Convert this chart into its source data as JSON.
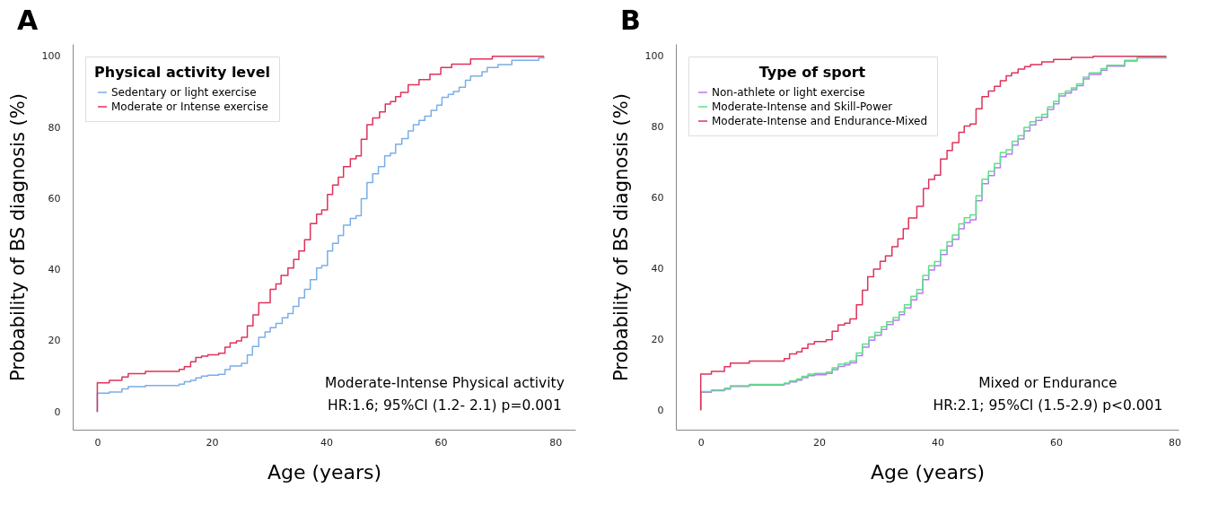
{
  "chart_data": [
    {
      "type": "step",
      "title": "A",
      "xlabel": "Age (years)",
      "ylabel": "Probability of BS diagnosis (%)",
      "legend_title": "Physical activity level",
      "legend": "top left",
      "grid": false,
      "xlim": [
        -4.3,
        83.5
      ],
      "ylim": [
        -5,
        103.5
      ],
      "xticks": [
        0,
        20,
        40,
        60,
        80
      ],
      "yticks": [
        0,
        20,
        40,
        60,
        80,
        100
      ],
      "annotations": [
        "Moderate-Intense Physical activity",
        "HR:1.6; 95%CI (1.2- 2.1) p=0.001"
      ],
      "series": [
        {
          "name": "Sedentary or light exercise",
          "color": "#7aaee8",
          "x": [
            0,
            0,
            2.1,
            4.3,
            5.4,
            8.4,
            14.3,
            15.2,
            16.3,
            17.2,
            18.2,
            19.3,
            21.2,
            22.3,
            23.2,
            25.2,
            26.2,
            27.1,
            28.2,
            29.3,
            30.2,
            31.2,
            32.3,
            33.3,
            34.2,
            35.2,
            36.2,
            37.2,
            38.3,
            39.2,
            40.2,
            41.1,
            42.1,
            43,
            44.2,
            45.2,
            46.1,
            47.1,
            48.1,
            49.1,
            50.2,
            51.2,
            52.1,
            53.2,
            54.3,
            55.2,
            56.2,
            57.2,
            58.3,
            59.3,
            60.2,
            61.3,
            62.2,
            63.2,
            64.3,
            65.2,
            67.2,
            68.1,
            70,
            72.4,
            77.1,
            78
          ],
          "values": [
            0,
            5.3,
            5.6,
            6.5,
            7.1,
            7.4,
            7.8,
            8.5,
            8.9,
            9.6,
            10.1,
            10.3,
            10.6,
            11.9,
            12.9,
            13.7,
            16,
            18.4,
            21,
            22.5,
            23.7,
            24.9,
            26.5,
            27.7,
            29.7,
            32.1,
            34.5,
            37.2,
            40.5,
            41.2,
            45.3,
            47.4,
            49.6,
            52.5,
            54.4,
            55.2,
            60,
            64.5,
            67,
            69,
            72,
            72.8,
            75.3,
            76.9,
            79,
            80.8,
            82,
            83.2,
            84.8,
            86.3,
            88.5,
            89.3,
            90.1,
            91.3,
            93.3,
            94.5,
            95.7,
            96.9,
            97.7,
            98.9,
            99.6,
            100
          ]
        },
        {
          "name": "Moderate or Intense exercise",
          "color": "#e0325a",
          "x": [
            0,
            0,
            2.1,
            4.3,
            5.4,
            8.4,
            14.3,
            15.2,
            16.3,
            17.2,
            18.2,
            19.3,
            21.2,
            22.3,
            23.2,
            24.3,
            25.2,
            26.2,
            27.2,
            28.2,
            30.2,
            31.2,
            32.1,
            33.3,
            34.3,
            35.2,
            36.2,
            37.2,
            38.3,
            39.2,
            40.2,
            41.1,
            42.1,
            43,
            44.2,
            45.2,
            46.1,
            47.1,
            48.1,
            49.3,
            50.3,
            51.2,
            52.1,
            53,
            54.3,
            56.2,
            58.1,
            60,
            61.9,
            65.2,
            69,
            78
          ],
          "values": [
            0,
            8.2,
            8.9,
            9.8,
            10.8,
            11.4,
            12,
            12.7,
            14.1,
            15.3,
            15.7,
            16.1,
            16.5,
            18.2,
            19.4,
            20,
            21,
            24.2,
            27.3,
            30.7,
            34.5,
            36,
            38.4,
            40.5,
            42.9,
            45.3,
            48.4,
            53,
            55.6,
            56.8,
            61.2,
            63.8,
            66,
            69,
            71.2,
            72,
            76.7,
            80.8,
            82.7,
            84.4,
            86.6,
            87.3,
            88.7,
            89.9,
            92,
            93.5,
            95,
            96.9,
            97.8,
            99.3,
            100,
            100
          ]
        }
      ]
    },
    {
      "type": "step",
      "title": "B",
      "xlabel": "Age (years)",
      "ylabel": "Probability of BS diagnosis (%)",
      "legend_title": "Type of sport",
      "legend": "top left",
      "grid": false,
      "xlim": [
        -4.2,
        80.7
      ],
      "ylim": [
        -5.5,
        103.5
      ],
      "xticks": [
        0,
        20,
        40,
        60,
        80
      ],
      "yticks": [
        0,
        20,
        40,
        60,
        80,
        100
      ],
      "annotations": [
        "Mixed or Endurance",
        "HR:2.1; 95%CI (1.5-2.9) p<0.001"
      ],
      "series": [
        {
          "name": "Non-athlete or light exercise",
          "color": "#b57cf0",
          "x": [
            0,
            0,
            1.8,
            4,
            5,
            8.2,
            14.1,
            15,
            16.2,
            17.1,
            18.1,
            19.2,
            21.2,
            22.2,
            23.2,
            24.3,
            25.2,
            26.3,
            27.3,
            28.4,
            29.4,
            30.5,
            31.4,
            32.5,
            33.5,
            34.4,
            35.5,
            36.5,
            37.5,
            38.5,
            39.5,
            40.5,
            41.6,
            42.5,
            43.6,
            44.5,
            45.5,
            46.5,
            47.5,
            48.6,
            49.6,
            50.6,
            51.6,
            52.6,
            53.6,
            54.6,
            55.6,
            56.6,
            57.6,
            58.6,
            59.6,
            60.5,
            61.6,
            62.6,
            63.5,
            64.6,
            65.6,
            67.6,
            68.6,
            71.6,
            73.7,
            78.6
          ],
          "values": [
            0,
            5.1,
            5.5,
            6.0,
            6.7,
            7.1,
            7.5,
            8.0,
            8.5,
            9.2,
            9.8,
            10.0,
            10.4,
            11.5,
            12.4,
            12.8,
            13.4,
            15.4,
            17.8,
            19.8,
            21.2,
            22.8,
            24.2,
            25.4,
            27.0,
            28.9,
            31.2,
            33.0,
            36.9,
            39.6,
            40.8,
            44.0,
            46.4,
            48.3,
            51.3,
            53.0,
            53.8,
            59.2,
            64.0,
            66.3,
            68.5,
            71.6,
            72.4,
            74.9,
            76.6,
            78.9,
            80.6,
            81.9,
            82.8,
            85.0,
            86.6,
            88.8,
            89.6,
            90.6,
            91.7,
            93.6,
            94.9,
            96.1,
            97.2,
            98.7,
            99.6,
            100
          ]
        },
        {
          "name": "Moderate-Intense and Skill-Power",
          "color": "#5ee08a",
          "x": [
            0,
            0,
            1.8,
            4,
            5,
            8.2,
            14.1,
            15,
            16.2,
            17.1,
            18.1,
            19.2,
            21.2,
            22.2,
            23.2,
            24.3,
            25.2,
            26.3,
            27.3,
            28.4,
            29.4,
            30.5,
            31.4,
            32.5,
            33.5,
            34.4,
            35.5,
            36.5,
            37.5,
            38.5,
            39.5,
            40.5,
            41.6,
            42.5,
            43.6,
            44.5,
            45.5,
            46.5,
            47.5,
            48.6,
            49.6,
            50.6,
            51.6,
            52.6,
            53.6,
            54.6,
            55.6,
            56.6,
            57.6,
            58.6,
            59.6,
            60.5,
            61.6,
            62.6,
            63.5,
            64.6,
            65.6,
            67.6,
            68.6,
            71.6,
            73.7,
            78.6
          ],
          "values": [
            0,
            5.3,
            5.7,
            6.2,
            6.9,
            7.3,
            7.7,
            8.3,
            8.8,
            9.6,
            10.2,
            10.4,
            10.8,
            12,
            13,
            13.3,
            13.9,
            16.2,
            18.7,
            20.7,
            22,
            23.6,
            25,
            26.2,
            27.8,
            29.8,
            32.2,
            34.1,
            38.1,
            40.8,
            42,
            45.2,
            47.6,
            49.5,
            52.7,
            54.4,
            55.2,
            60.6,
            65.3,
            67.5,
            69.7,
            72.8,
            73.6,
            76,
            77.6,
            79.9,
            81.5,
            82.8,
            83.6,
            85.7,
            87.3,
            89.4,
            90.2,
            91.1,
            92.2,
            94.1,
            95.3,
            96.5,
            97.5,
            98.9,
            99.7,
            100
          ]
        },
        {
          "name": "Moderate-Intense and Endurance-Mixed",
          "color": "#e0325a",
          "x": [
            0,
            0,
            1.8,
            4,
            5,
            8.2,
            14.1,
            15,
            16.2,
            17.1,
            18.1,
            19.2,
            21.2,
            22.2,
            23.2,
            24.3,
            25.2,
            26.3,
            27.3,
            28.2,
            29.2,
            30.3,
            31.2,
            32.3,
            33.3,
            34.2,
            35.1,
            36.5,
            37.6,
            38.5,
            39.5,
            40.5,
            41.6,
            42.5,
            43.6,
            44.5,
            45.5,
            46.5,
            47.5,
            48.6,
            49.6,
            50.6,
            51.6,
            52.5,
            53.6,
            54.7,
            55.7,
            57.6,
            59.6,
            62.6,
            66.3,
            78.6
          ],
          "values": [
            0,
            10.2,
            11,
            12.3,
            13.3,
            13.9,
            14.6,
            15.9,
            16.5,
            17.5,
            18.7,
            19.4,
            19.9,
            22.3,
            24.1,
            24.6,
            25.8,
            29.8,
            33.9,
            37.7,
            39.9,
            42.1,
            43.6,
            46.2,
            48.4,
            51.3,
            54.3,
            57.6,
            62.6,
            65.2,
            66.4,
            71,
            73.4,
            75.6,
            78.5,
            80.3,
            80.9,
            85.2,
            88.6,
            90.2,
            91.5,
            93.1,
            94.5,
            95.3,
            96.4,
            97.1,
            97.7,
            98.4,
            99.1,
            99.7,
            100,
            100
          ]
        }
      ]
    }
  ]
}
